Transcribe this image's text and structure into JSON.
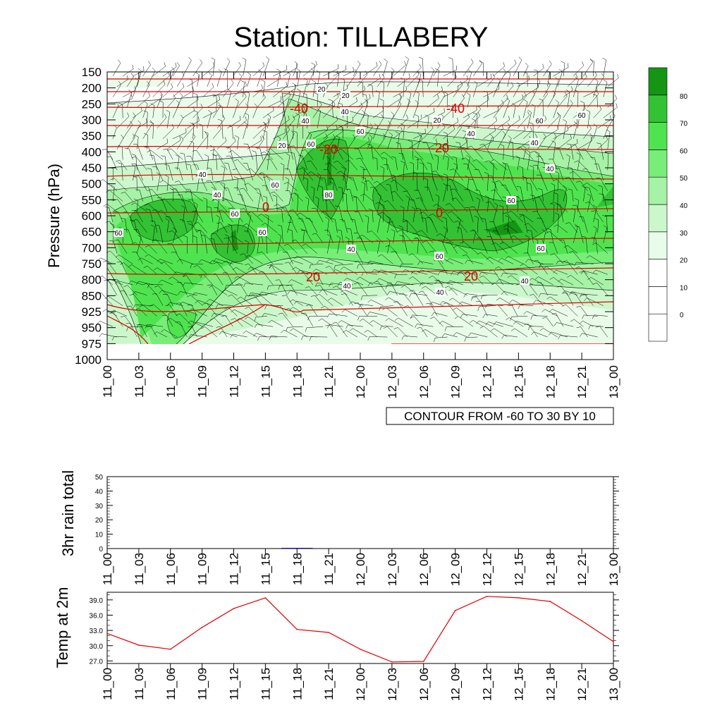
{
  "title": "Station: TILLABERY",
  "time_ticks": [
    "11_00",
    "11_03",
    "11_06",
    "11_09",
    "11_12",
    "11_15",
    "11_18",
    "11_21",
    "12_00",
    "12_03",
    "12_06",
    "12_09",
    "12_12",
    "12_15",
    "12_18",
    "12_21",
    "13_00"
  ],
  "colors": {
    "levels": [
      "#ffffff",
      "#ffffff",
      "#ffffff",
      "#e9fbe9",
      "#ccf7cc",
      "#a6f2a6",
      "#78ed78",
      "#4fe44f",
      "#33c233",
      "#149614"
    ],
    "temperature_contour": "#e00000",
    "temp_2m_line": "#e00000",
    "wind_barb": "#000000",
    "contour_line": "#000000"
  },
  "chart_data": [
    {
      "name": "rh-time-height",
      "type": "heatmap",
      "title": "Station: TILLABERY",
      "ylabel": "Pressure (hPa)",
      "y_ticks": [
        "150",
        "200",
        "250",
        "300",
        "350",
        "400",
        "450",
        "500",
        "550",
        "600",
        "650",
        "700",
        "750",
        "800",
        "850",
        "925",
        "950",
        "975",
        "1000"
      ],
      "x_ticks_ref": "time_ticks",
      "info_label": "CONTOUR FROM -60 TO 30 BY 10",
      "colorbar_labels": [
        "0",
        "10",
        "20",
        "30",
        "40",
        "50",
        "60",
        "70",
        "80"
      ],
      "levels": [
        0,
        10,
        20,
        30,
        40,
        50,
        60,
        70,
        80
      ],
      "contour_labels": [
        "20",
        "20",
        "40",
        "40",
        "60",
        "80",
        "20",
        "40",
        "60",
        "60",
        "60",
        "20",
        "40",
        "60",
        "60",
        "40",
        "60",
        "60",
        "40",
        "40",
        "60",
        "60",
        "60",
        "40",
        "40",
        "40",
        "40"
      ],
      "temperature_labels": [
        "-40",
        "-40",
        "-20",
        "-20",
        "0",
        "0",
        "20",
        "20"
      ]
    },
    {
      "name": "rain-3hr",
      "type": "bar",
      "ylabel": "3hr rain total",
      "ylim": [
        0,
        50
      ],
      "y_ticks": [
        "0",
        "10",
        "20",
        "30",
        "40",
        "50"
      ],
      "x_ticks_ref": "time_ticks",
      "x": [
        "11_00",
        "11_03",
        "11_06",
        "11_09",
        "11_12",
        "11_15",
        "11_18",
        "11_21",
        "12_00",
        "12_03",
        "12_06",
        "12_09",
        "12_12",
        "12_15",
        "12_18",
        "12_21",
        "13_00"
      ],
      "values": [
        0,
        0,
        0,
        0,
        0,
        0,
        0.3,
        0,
        0,
        0,
        0,
        0,
        0,
        0,
        0,
        0,
        0
      ]
    },
    {
      "name": "temp-2m",
      "type": "line",
      "ylabel": "Temp at 2m",
      "ylim": [
        26.5,
        40.5
      ],
      "y_ticks": [
        "27.0",
        "30.0",
        "33.0",
        "36.0",
        "39.0"
      ],
      "x_ticks_ref": "time_ticks",
      "x": [
        "11_00",
        "11_03",
        "11_06",
        "11_09",
        "11_12",
        "11_15",
        "11_18",
        "11_21",
        "12_00",
        "12_03",
        "12_06",
        "12_09",
        "12_12",
        "12_15",
        "12_18",
        "12_21",
        "13_00"
      ],
      "values": [
        32.4,
        30.1,
        29.3,
        33.6,
        37.3,
        39.4,
        33.2,
        32.6,
        29.3,
        26.8,
        26.9,
        36.9,
        39.7,
        39.4,
        38.7,
        34.9,
        30.8
      ]
    }
  ]
}
